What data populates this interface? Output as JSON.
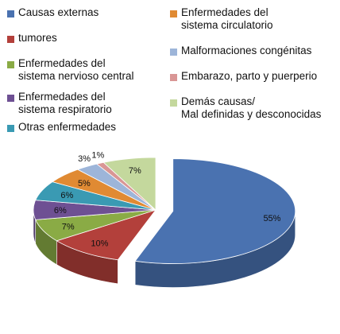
{
  "chart_data": {
    "type": "pie",
    "variant": "3d-exploded",
    "categories": [
      "Causas externas",
      "tumores",
      "Enfermedades del\nsistema nervioso central",
      "Enfermedades del\nsistema respiratorio",
      "Otras enfermedades",
      "Enfermedades del\nsistema circulatorio",
      "Malformaciones congénitas",
      "Embarazo, parto y puerperio",
      "Demás causas/\nMal definidas y desconocidas"
    ],
    "values": [
      55,
      10,
      7,
      6,
      6,
      5,
      3,
      1,
      7
    ],
    "labels": [
      "55%",
      "10%",
      "7%",
      "6%",
      "6%",
      "5%",
      "3%",
      "1%",
      "7%"
    ],
    "colors": [
      "#4a72b0",
      "#b3403b",
      "#8aab45",
      "#6e5093",
      "#3a9ab3",
      "#e08a33",
      "#9db5d9",
      "#d99695",
      "#c4d89d"
    ],
    "legend_placement": "top"
  }
}
